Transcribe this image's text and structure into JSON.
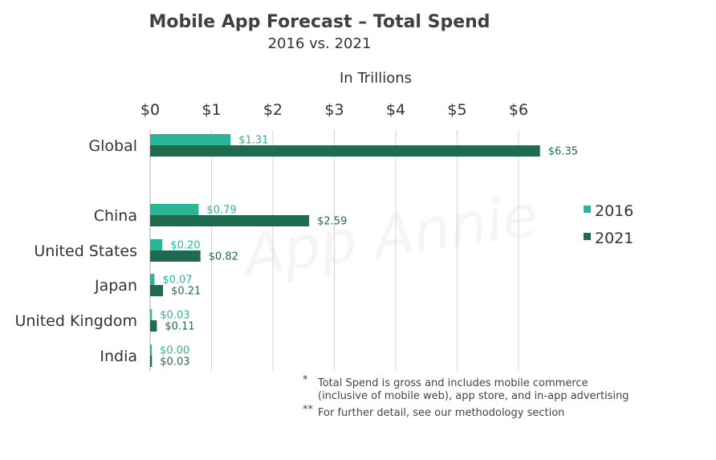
{
  "chart_data": {
    "type": "bar",
    "orientation": "horizontal",
    "title": "Mobile App Forecast – Total Spend",
    "subtitle": "2016 vs. 2021",
    "xlabel": "In Trillions",
    "ylabel": "",
    "xlim": [
      0,
      6.5
    ],
    "x_ticks": [
      "$0",
      "$1",
      "$2",
      "$3",
      "$4",
      "$5",
      "$6"
    ],
    "x_tick_values": [
      0,
      1,
      2,
      3,
      4,
      5,
      6
    ],
    "axis_position": "top",
    "grid": "vertical",
    "categories": [
      "Global",
      "China",
      "United States",
      "Japan",
      "United Kingdom",
      "India"
    ],
    "series": [
      {
        "name": "2016",
        "color": "#2bb597",
        "values": [
          1.31,
          0.79,
          0.2,
          0.07,
          0.03,
          0.0
        ],
        "labels": [
          "$1.31",
          "$0.79",
          "$0.20",
          "$0.07",
          "$0.03",
          "$0.00"
        ]
      },
      {
        "name": "2021",
        "color": "#1f6b4f",
        "values": [
          6.35,
          2.59,
          0.82,
          0.21,
          0.11,
          0.03
        ],
        "labels": [
          "$6.35",
          "$2.59",
          "$0.82",
          "$0.21",
          "$0.11",
          "$0.03"
        ]
      }
    ],
    "legend": "right",
    "watermark": "App Annie",
    "footnotes": [
      {
        "marker": "*",
        "lines": [
          "Total Spend is gross and includes mobile commerce",
          "(inclusive of mobile web), app store, and in-app advertising"
        ]
      },
      {
        "marker": "**",
        "lines": [
          "For further detail, see our methodology section"
        ]
      }
    ]
  }
}
